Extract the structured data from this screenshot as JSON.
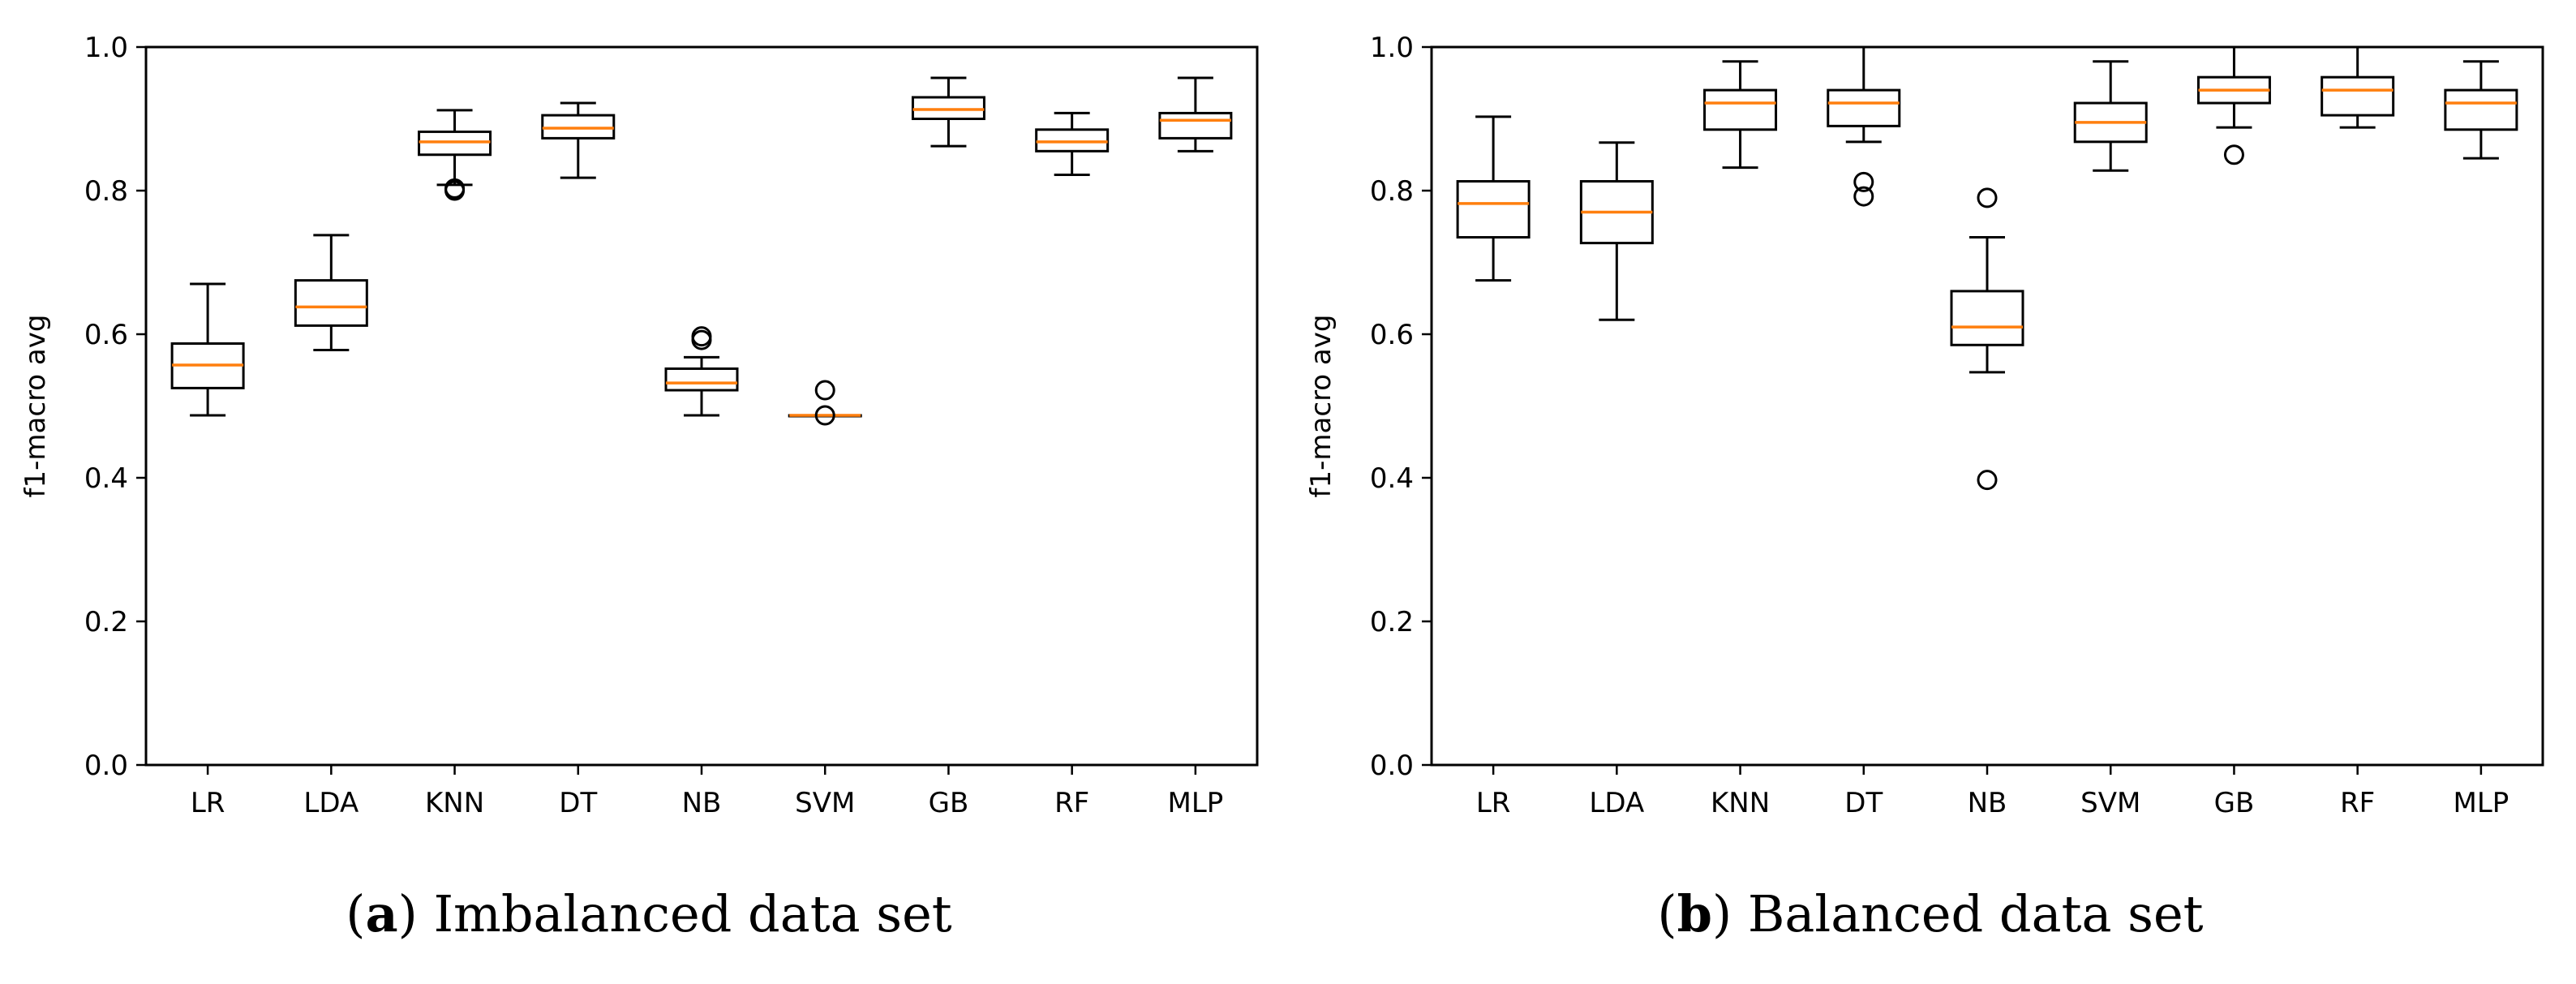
{
  "chart_data": [
    {
      "type": "box",
      "title": "",
      "xlabel": "",
      "ylabel": "f1-macro avg",
      "ylim": [
        0.0,
        1.0
      ],
      "yticks": [
        "0.0",
        "0.2",
        "0.4",
        "0.6",
        "0.8",
        "1.0"
      ],
      "categories": [
        "LR",
        "LDA",
        "KNN",
        "DT",
        "NB",
        "SVM",
        "GB",
        "RF",
        "MLP"
      ],
      "boxes": [
        {
          "label": "LR",
          "whisker_low": 0.487,
          "q1": 0.525,
          "median": 0.557,
          "q3": 0.587,
          "whisker_high": 0.67,
          "outliers": []
        },
        {
          "label": "LDA",
          "whisker_low": 0.578,
          "q1": 0.612,
          "median": 0.638,
          "q3": 0.675,
          "whisker_high": 0.738,
          "outliers": []
        },
        {
          "label": "KNN",
          "whisker_low": 0.808,
          "q1": 0.85,
          "median": 0.868,
          "q3": 0.882,
          "whisker_high": 0.912,
          "outliers": [
            0.8,
            0.803
          ]
        },
        {
          "label": "DT",
          "whisker_low": 0.818,
          "q1": 0.873,
          "median": 0.887,
          "q3": 0.905,
          "whisker_high": 0.922,
          "outliers": []
        },
        {
          "label": "NB",
          "whisker_low": 0.487,
          "q1": 0.522,
          "median": 0.532,
          "q3": 0.552,
          "whisker_high": 0.568,
          "outliers": [
            0.592,
            0.597
          ]
        },
        {
          "label": "SVM",
          "whisker_low": 0.487,
          "q1": 0.487,
          "median": 0.487,
          "q3": 0.487,
          "whisker_high": 0.487,
          "outliers": [
            0.487,
            0.522
          ]
        },
        {
          "label": "GB",
          "whisker_low": 0.862,
          "q1": 0.9,
          "median": 0.913,
          "q3": 0.93,
          "whisker_high": 0.957,
          "outliers": []
        },
        {
          "label": "RF",
          "whisker_low": 0.822,
          "q1": 0.855,
          "median": 0.868,
          "q3": 0.885,
          "whisker_high": 0.908,
          "outliers": []
        },
        {
          "label": "MLP",
          "whisker_low": 0.855,
          "q1": 0.873,
          "median": 0.898,
          "q3": 0.908,
          "whisker_high": 0.957,
          "outliers": []
        }
      ],
      "caption_letter": "a",
      "caption_text": ") Imbalanced data set",
      "caption_open": "("
    },
    {
      "type": "box",
      "title": "",
      "xlabel": "",
      "ylabel": "f1-macro avg",
      "ylim": [
        0.0,
        1.0
      ],
      "yticks": [
        "0.0",
        "0.2",
        "0.4",
        "0.6",
        "0.8",
        "1.0"
      ],
      "categories": [
        "LR",
        "LDA",
        "KNN",
        "DT",
        "NB",
        "SVM",
        "GB",
        "RF",
        "MLP"
      ],
      "boxes": [
        {
          "label": "LR",
          "whisker_low": 0.675,
          "q1": 0.735,
          "median": 0.782,
          "q3": 0.813,
          "whisker_high": 0.903,
          "outliers": []
        },
        {
          "label": "LDA",
          "whisker_low": 0.62,
          "q1": 0.727,
          "median": 0.77,
          "q3": 0.813,
          "whisker_high": 0.867,
          "outliers": []
        },
        {
          "label": "KNN",
          "whisker_low": 0.832,
          "q1": 0.885,
          "median": 0.922,
          "q3": 0.94,
          "whisker_high": 0.98,
          "outliers": []
        },
        {
          "label": "DT",
          "whisker_low": 0.868,
          "q1": 0.89,
          "median": 0.922,
          "q3": 0.94,
          "whisker_high": 1.0,
          "outliers": [
            0.792,
            0.812
          ]
        },
        {
          "label": "NB",
          "whisker_low": 0.547,
          "q1": 0.585,
          "median": 0.61,
          "q3": 0.66,
          "whisker_high": 0.735,
          "outliers": [
            0.79,
            0.397
          ]
        },
        {
          "label": "SVM",
          "whisker_low": 0.828,
          "q1": 0.868,
          "median": 0.895,
          "q3": 0.922,
          "whisker_high": 0.98,
          "outliers": []
        },
        {
          "label": "GB",
          "whisker_low": 0.888,
          "q1": 0.922,
          "median": 0.94,
          "q3": 0.958,
          "whisker_high": 1.0,
          "outliers": [
            0.85
          ]
        },
        {
          "label": "RF",
          "whisker_low": 0.888,
          "q1": 0.905,
          "median": 0.94,
          "q3": 0.958,
          "whisker_high": 1.0,
          "outliers": []
        },
        {
          "label": "MLP",
          "whisker_low": 0.845,
          "q1": 0.885,
          "median": 0.922,
          "q3": 0.94,
          "whisker_high": 0.98,
          "outliers": []
        }
      ],
      "caption_letter": "b",
      "caption_text": ") Balanced data set",
      "caption_open": "("
    }
  ],
  "colors": {
    "box": "#000000",
    "median": "#ff7f0e",
    "axes": "#000000",
    "background": "#ffffff"
  }
}
